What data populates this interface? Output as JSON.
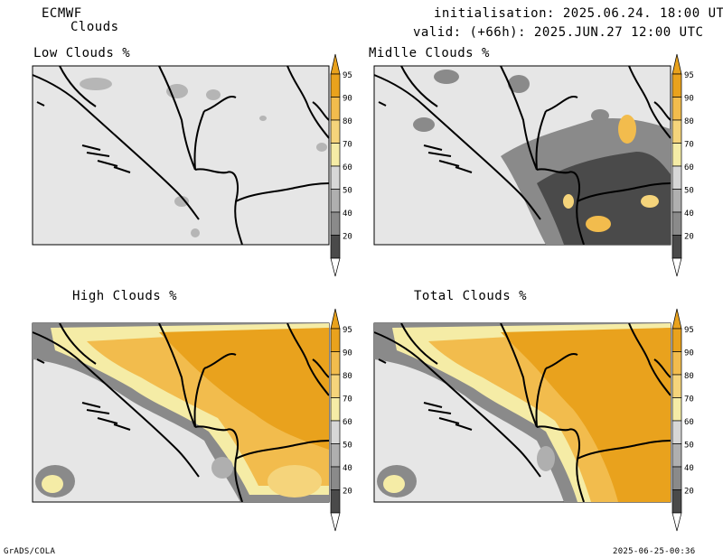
{
  "header": {
    "model": "ECMWF",
    "product": "Clouds",
    "init_line": "initialisation: 2025.06.24. 18:00 UTC",
    "valid_line": "valid: (+66h): 2025.JUN.27 12:00 UTC"
  },
  "panels": [
    {
      "title": "Low Clouds %"
    },
    {
      "title": "Midlle Clouds %"
    },
    {
      "title": "High Clouds %"
    },
    {
      "title": "Total Clouds %"
    }
  ],
  "colorbar": {
    "labels": [
      "95",
      "90",
      "80",
      "70",
      "60",
      "50",
      "40",
      "20"
    ],
    "colors": [
      "#e9a21d",
      "#f2bc4d",
      "#f5d47b",
      "#f5eca6",
      "#d7d7d7",
      "#afafaf",
      "#8a8a8a",
      "#4a4a4a"
    ]
  },
  "footer": {
    "left": "GrADS/COLA",
    "right": "2025-06-25-00:36"
  }
}
